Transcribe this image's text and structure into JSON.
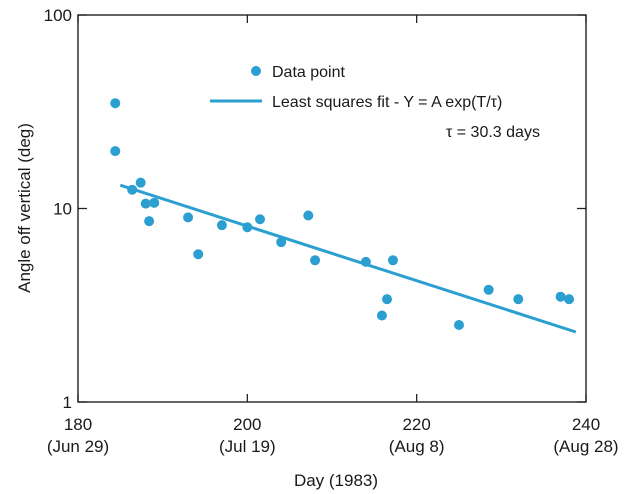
{
  "chart_data": {
    "type": "scatter",
    "xlabel": "Day (1983)",
    "ylabel": "Angle off vertical (deg)",
    "xlim": [
      180,
      240
    ],
    "ylim": [
      1,
      100
    ],
    "y_scale": "log",
    "grid": false,
    "legend_placement": "top-right",
    "x_ticks": [
      {
        "value": 180,
        "label": "180",
        "sublabel": "(Jun 29)"
      },
      {
        "value": 200,
        "label": "200",
        "sublabel": "(Jul 19)"
      },
      {
        "value": 220,
        "label": "220",
        "sublabel": "(Aug 8)"
      },
      {
        "value": 240,
        "label": "240",
        "sublabel": "(Aug 28)"
      }
    ],
    "y_ticks": [
      {
        "value": 1,
        "label": "1"
      },
      {
        "value": 10,
        "label": "10"
      },
      {
        "value": 100,
        "label": "100"
      }
    ],
    "color": "#2a9fd0",
    "series": [
      {
        "name": "Data point",
        "kind": "points",
        "points": [
          [
            184.4,
            35.0
          ],
          [
            184.4,
            19.8
          ],
          [
            186.4,
            12.5
          ],
          [
            187.4,
            13.6
          ],
          [
            188.0,
            10.6
          ],
          [
            188.4,
            8.6
          ],
          [
            189.0,
            10.7
          ],
          [
            193.0,
            9.0
          ],
          [
            194.2,
            5.8
          ],
          [
            197.0,
            8.2
          ],
          [
            200.0,
            8.0
          ],
          [
            201.5,
            8.8
          ],
          [
            204.0,
            6.7
          ],
          [
            207.2,
            9.2
          ],
          [
            208.0,
            5.4
          ],
          [
            214.0,
            5.3
          ],
          [
            215.9,
            2.8
          ],
          [
            216.5,
            3.4
          ],
          [
            217.2,
            5.4
          ],
          [
            225.0,
            2.5
          ],
          [
            228.5,
            3.8
          ],
          [
            232.0,
            3.4
          ],
          [
            237.0,
            3.5
          ],
          [
            238.0,
            3.4
          ]
        ]
      },
      {
        "name": "Least squares fit - Y = A  exp(T/τ)",
        "kind": "line",
        "points": [
          [
            185.0,
            13.2
          ],
          [
            238.8,
            2.3
          ]
        ]
      }
    ],
    "annotations": [
      "τ = 30.3 days"
    ]
  }
}
